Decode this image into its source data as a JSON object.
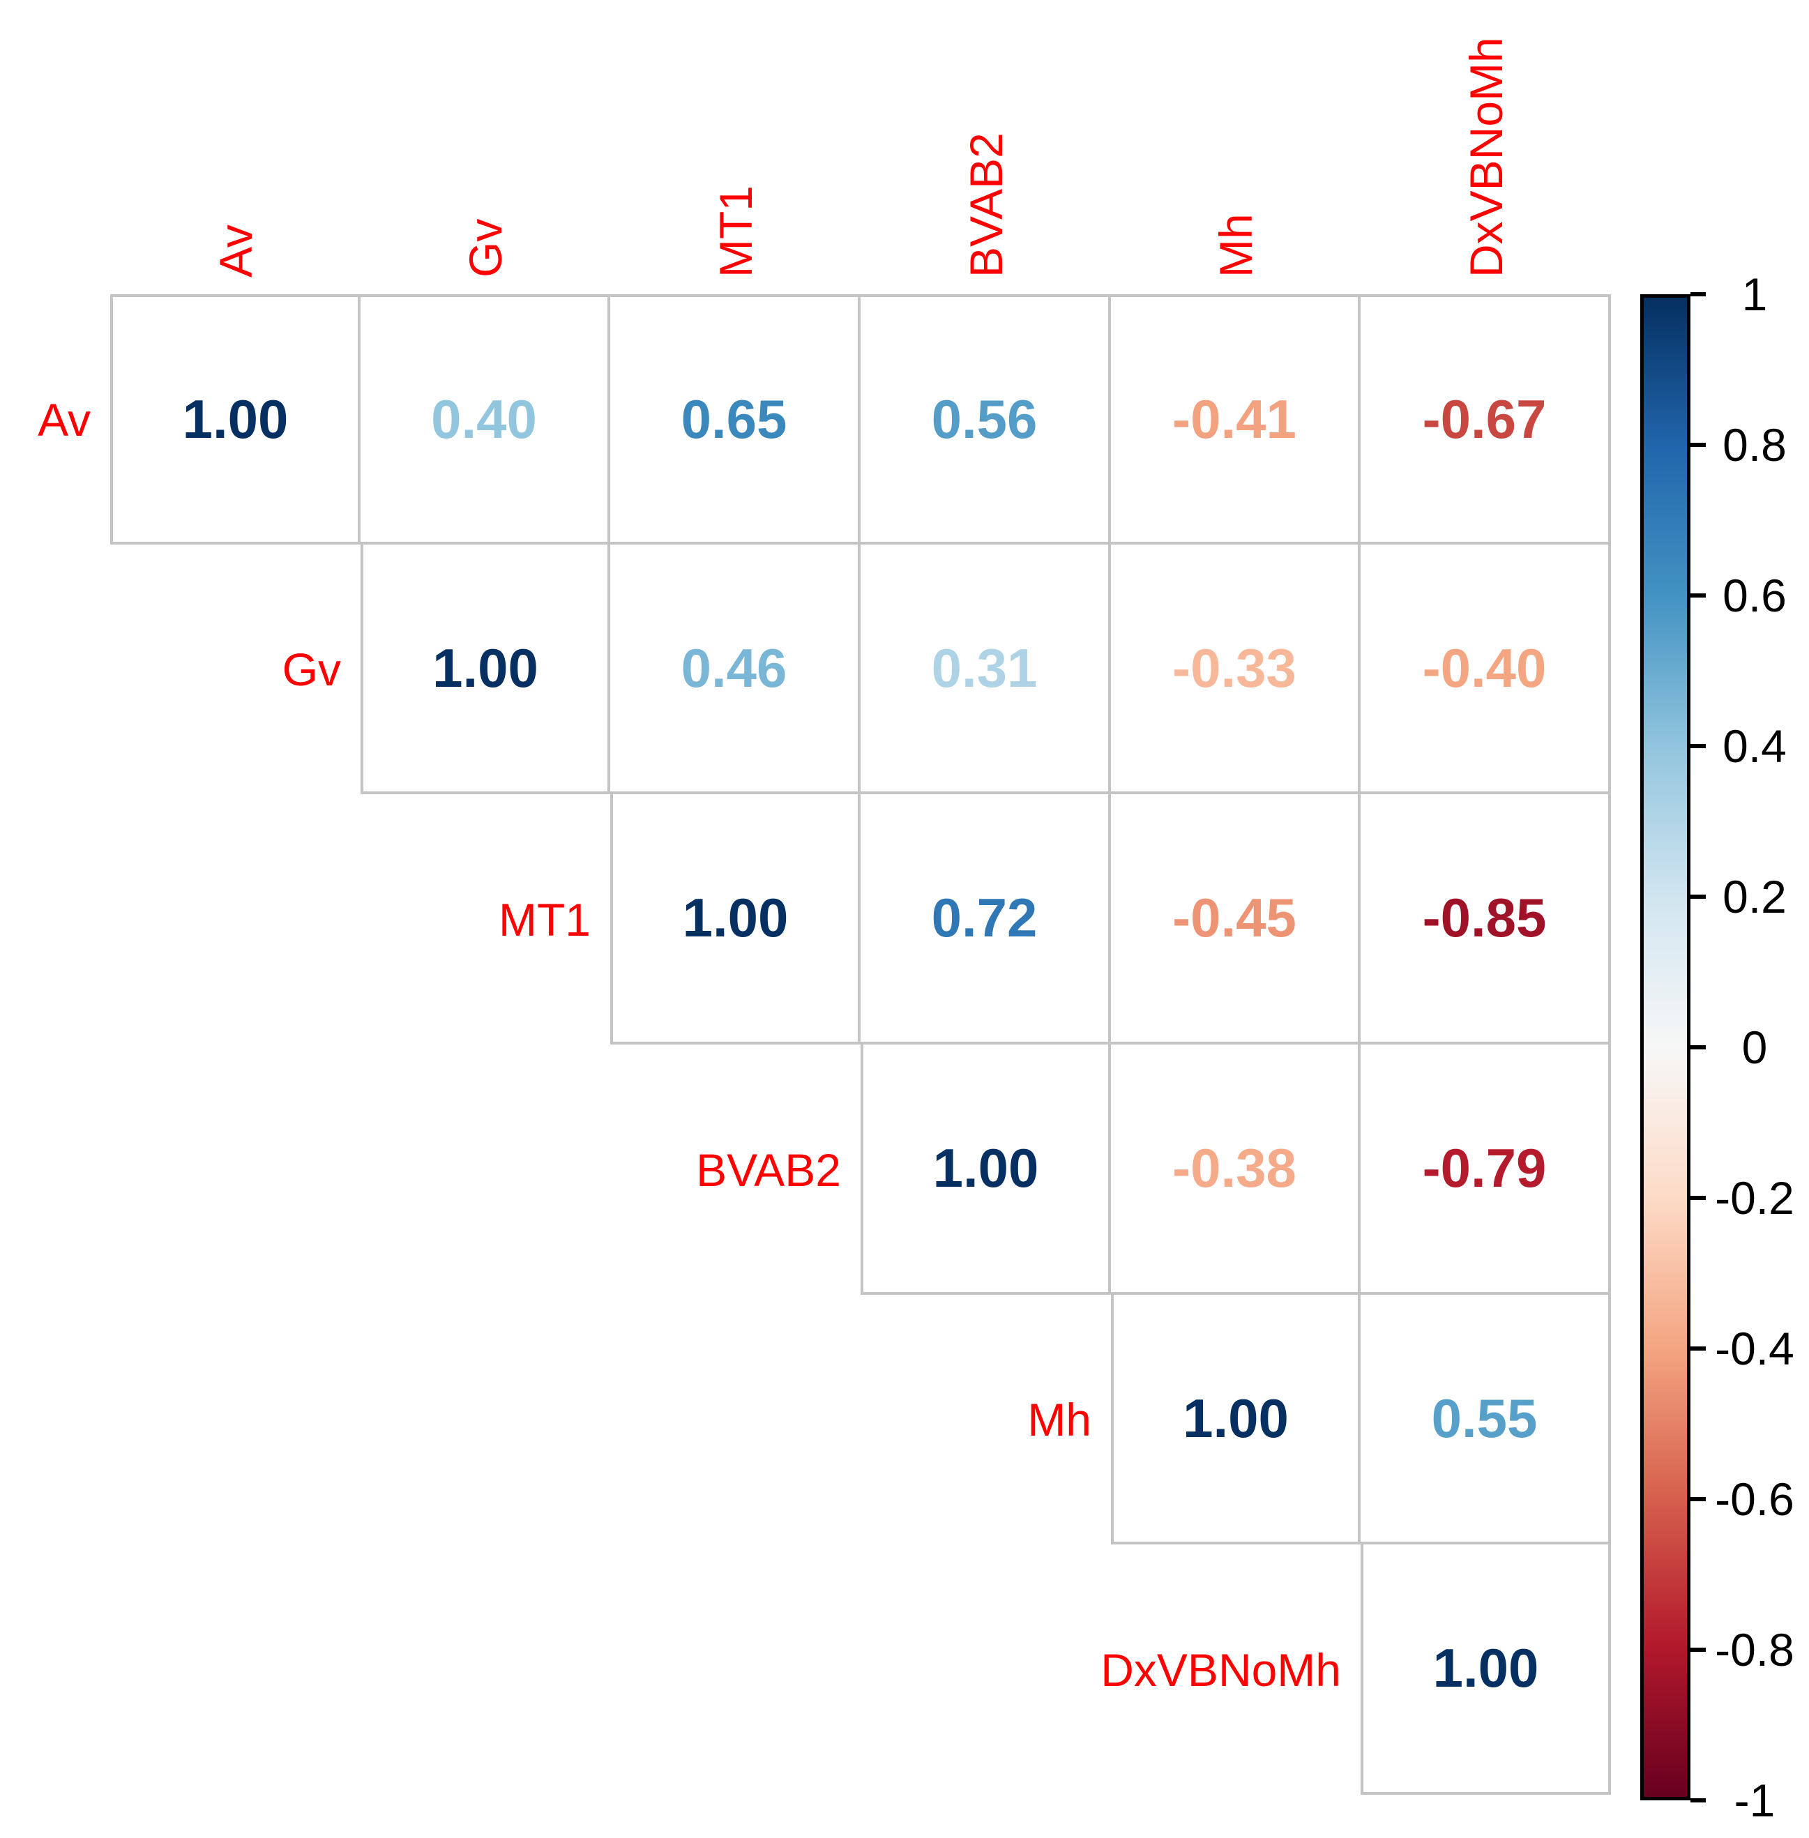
{
  "figure": {
    "background_color": "#FFFFFF",
    "grid_line_color": "#C4C4C4",
    "variable_label_color": "#FF0000",
    "colorbar_tick_label_color": "#000000",
    "colorbar_border_color": "#000000"
  },
  "chart_data": {
    "type": "heatmap",
    "subtype": "correlation-matrix-upper-triangle-numbers",
    "title": "",
    "variables": [
      "Av",
      "Gv",
      "MT1",
      "BVAB2",
      "Mh",
      "DxVBNoMh"
    ],
    "matrix_upper_triangle": [
      [
        1.0,
        0.4,
        0.65,
        0.56,
        -0.41,
        -0.67
      ],
      [
        1.0,
        0.46,
        0.31,
        -0.33,
        -0.4
      ],
      [
        1.0,
        0.72,
        -0.45,
        -0.85
      ],
      [
        1.0,
        -0.38,
        -0.79
      ],
      [
        1.0,
        0.55
      ],
      [
        1.0
      ]
    ],
    "value_decimals": 2,
    "colorbar": {
      "position": "right",
      "range": [
        -1,
        1
      ],
      "tick_labels": [
        "1",
        "0.8",
        "0.6",
        "0.4",
        "0.2",
        "0",
        "-0.2",
        "-0.4",
        "-0.6",
        "-0.8",
        "-1"
      ]
    },
    "palette_rdbu": [
      {
        "t": -1.0,
        "color": "#67001F"
      },
      {
        "t": -0.8,
        "color": "#B2182B"
      },
      {
        "t": -0.6,
        "color": "#D6604D"
      },
      {
        "t": -0.4,
        "color": "#F4A582"
      },
      {
        "t": -0.2,
        "color": "#FDDBC7"
      },
      {
        "t": 0.0,
        "color": "#F7F7F7"
      },
      {
        "t": 0.2,
        "color": "#D1E5F0"
      },
      {
        "t": 0.4,
        "color": "#92C5DE"
      },
      {
        "t": 0.6,
        "color": "#4393C3"
      },
      {
        "t": 0.8,
        "color": "#2166AC"
      },
      {
        "t": 1.0,
        "color": "#053061"
      }
    ]
  }
}
